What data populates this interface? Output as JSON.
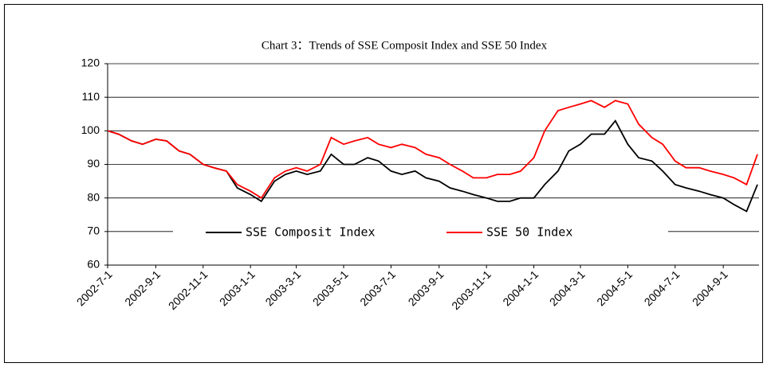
{
  "chart_data": {
    "type": "line",
    "title": "Chart 3：Trends of SSE Composit Index and SSE 50 Index",
    "x": [
      "2002-7-1",
      "2002-7-15",
      "2002-8-1",
      "2002-8-15",
      "2002-9-1",
      "2002-9-15",
      "2002-10-1",
      "2002-10-15",
      "2002-11-1",
      "2002-11-15",
      "2002-12-1",
      "2002-12-15",
      "2003-1-1",
      "2003-1-15",
      "2003-2-1",
      "2003-2-15",
      "2003-3-1",
      "2003-3-15",
      "2003-4-1",
      "2003-4-15",
      "2003-5-1",
      "2003-5-15",
      "2003-6-1",
      "2003-6-15",
      "2003-7-1",
      "2003-7-15",
      "2003-8-1",
      "2003-8-15",
      "2003-9-1",
      "2003-9-15",
      "2003-10-1",
      "2003-10-15",
      "2003-11-1",
      "2003-11-15",
      "2003-12-1",
      "2003-12-15",
      "2004-1-1",
      "2004-1-15",
      "2004-2-1",
      "2004-2-15",
      "2004-3-1",
      "2004-3-15",
      "2004-4-1",
      "2004-4-15",
      "2004-5-1",
      "2004-5-15",
      "2004-6-1",
      "2004-6-15",
      "2004-7-1",
      "2004-7-15",
      "2004-8-1",
      "2004-8-15",
      "2004-9-1",
      "2004-9-15",
      "2004-10-1",
      "2004-10-15"
    ],
    "xticks": [
      "2002-7-1",
      "2002-9-1",
      "2002-11-1",
      "2003-1-1",
      "2003-3-1",
      "2003-5-1",
      "2003-7-1",
      "2003-9-1",
      "2003-11-1",
      "2004-1-1",
      "2004-3-1",
      "2004-5-1",
      "2004-7-1",
      "2004-9-1"
    ],
    "series": [
      {
        "name": "SSE Composit Index",
        "color": "#000000",
        "values": [
          100,
          99,
          97,
          96,
          97.5,
          97,
          94,
          93,
          90,
          89,
          88,
          83,
          81,
          79,
          85,
          87,
          88,
          87,
          88,
          93,
          90,
          90,
          92,
          91,
          88,
          87,
          88,
          86,
          85,
          83,
          82,
          81,
          80,
          79,
          79,
          80,
          80,
          84,
          88,
          94,
          96,
          99,
          99,
          103,
          96,
          92,
          91,
          88,
          84,
          83,
          82,
          81,
          80,
          78,
          76,
          84
        ]
      },
      {
        "name": "SSE 50 Index",
        "color": "#ff0000",
        "values": [
          100,
          99,
          97,
          96,
          97.5,
          97,
          94,
          93,
          90,
          89,
          88,
          84,
          82,
          80,
          86,
          88,
          89,
          88,
          90,
          98,
          96,
          97,
          98,
          96,
          95,
          96,
          95,
          93,
          92,
          90,
          88,
          86,
          86,
          87,
          87,
          88,
          92,
          100,
          106,
          107,
          108,
          109,
          107,
          109,
          108,
          102,
          98,
          96,
          91,
          89,
          89,
          88,
          87,
          86,
          84,
          93
        ]
      }
    ],
    "ylim": [
      60,
      120
    ],
    "yticks": [
      60,
      70,
      80,
      90,
      100,
      110,
      120
    ],
    "grid": true
  }
}
